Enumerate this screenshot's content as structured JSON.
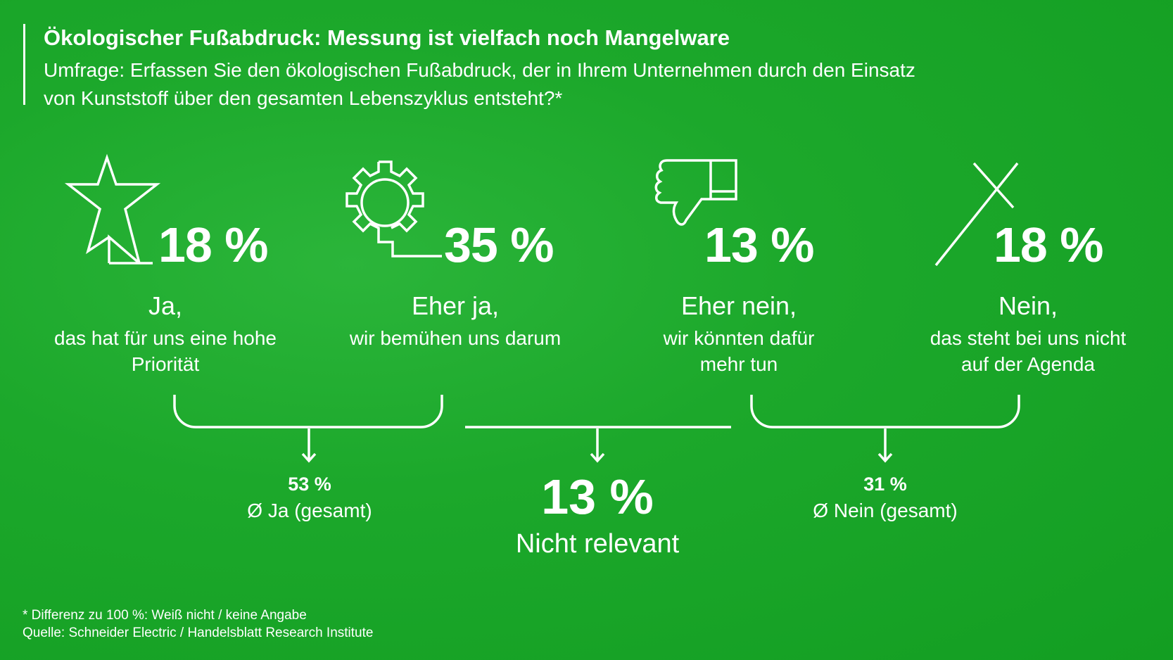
{
  "header": {
    "title": "Ökologischer Fußabdruck: Messung ist vielfach noch Mangelware",
    "subtitle_line1": "Umfrage: Erfassen Sie den ökologischen Fußabdruck, der in Ihrem Unternehmen durch den Einsatz",
    "subtitle_line2": "von Kunststoff über den gesamten Lebenszyklus entsteht?*"
  },
  "answers": [
    {
      "icon": "star-icon",
      "value": "18 %",
      "label": "Ja,",
      "sub1": "das hat für uns eine hohe",
      "sub2": "Priorität"
    },
    {
      "icon": "gear-icon",
      "value": "35 %",
      "label": "Eher ja,",
      "sub1": "wir bemühen uns darum",
      "sub2": ""
    },
    {
      "icon": "thumbs-down-icon",
      "value": "13 %",
      "label": "Eher nein,",
      "sub1": "wir könnten dafür",
      "sub2": "mehr tun"
    },
    {
      "icon": "cross-icon",
      "value": "18 %",
      "label": "Nein,",
      "sub1": "das steht bei uns nicht",
      "sub2": "auf der Agenda"
    }
  ],
  "summary": {
    "yes_value": "53 %",
    "yes_label": "Ø Ja (gesamt)",
    "irrelevant_value": "13 %",
    "irrelevant_label": "Nicht relevant",
    "no_value": "31 %",
    "no_label": "Ø Nein (gesamt)"
  },
  "footer": {
    "note": "* Differenz zu 100 %: Weiß nicht / keine Angabe",
    "source": "Quelle: Schneider Electric / Handelsblatt Research Institute"
  },
  "colors": {
    "background": "#1ca82b",
    "foreground": "#ffffff"
  }
}
